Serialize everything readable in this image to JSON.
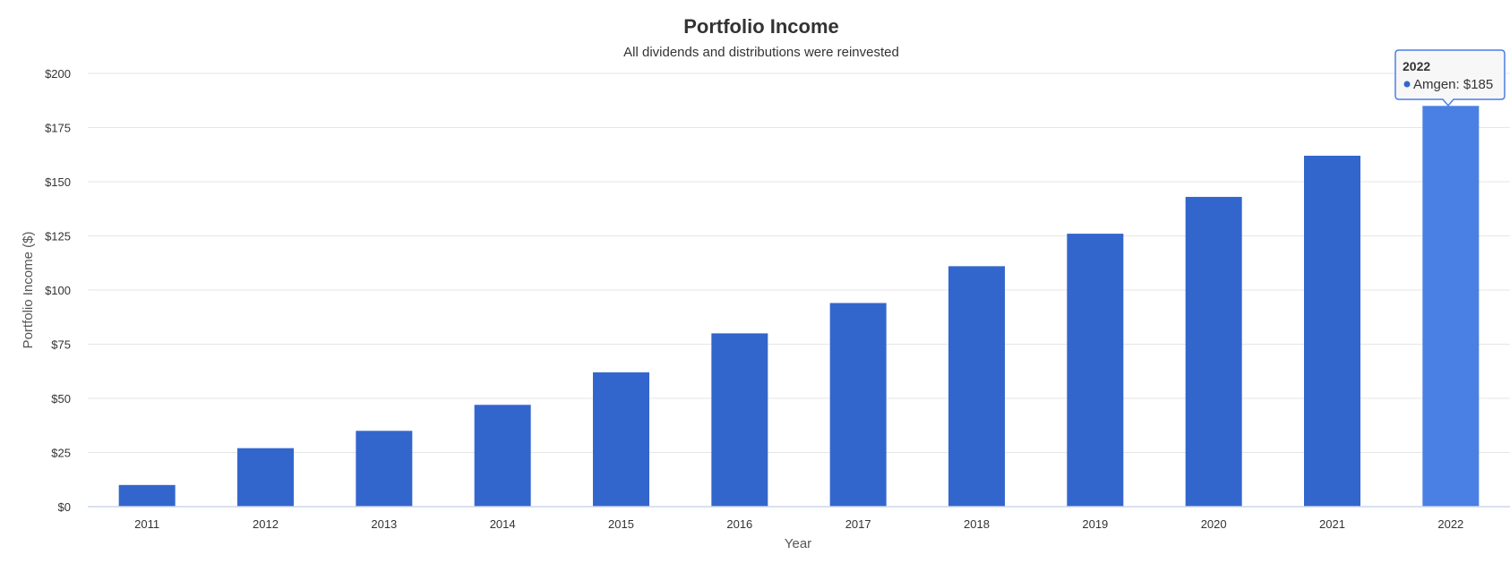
{
  "chart_data": {
    "type": "bar",
    "title": "Portfolio Income",
    "subtitle": "All dividends and distributions were reinvested",
    "xlabel": "Year",
    "ylabel": "Portfolio Income ($)",
    "ylim": [
      0,
      200
    ],
    "yticks": [
      0,
      25,
      50,
      75,
      100,
      125,
      150,
      175,
      200
    ],
    "ytick_labels": [
      "$0",
      "$25",
      "$50",
      "$75",
      "$100",
      "$125",
      "$150",
      "$175",
      "$200"
    ],
    "categories": [
      "2011",
      "2012",
      "2013",
      "2014",
      "2015",
      "2016",
      "2017",
      "2018",
      "2019",
      "2020",
      "2021",
      "2022"
    ],
    "series": [
      {
        "name": "Amgen",
        "values": [
          10,
          27,
          35,
          47,
          62,
          80,
          94,
          111,
          126,
          143,
          162,
          185
        ]
      }
    ],
    "grid": true,
    "colors": {
      "bar": "#3366cc",
      "bar_highlight": "#4a7fe3",
      "grid": "#e6e6e6",
      "axis": "#ccd6eb",
      "text": "#333333",
      "title": "#333333"
    },
    "tooltip": {
      "category_index": 11,
      "title": "2022",
      "series_name": "Amgen",
      "value_label": "$185",
      "separator": ": "
    }
  }
}
